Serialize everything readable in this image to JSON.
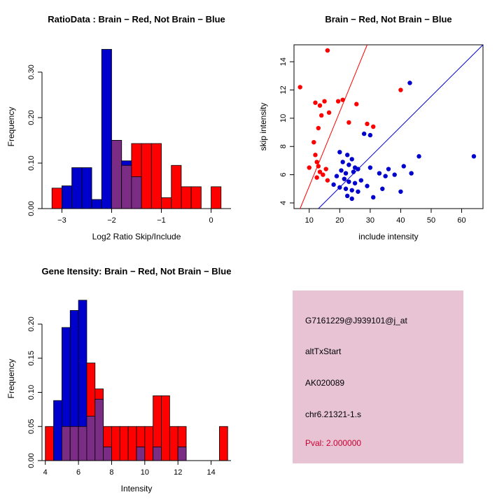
{
  "figure": {
    "background": "#FFFFFF",
    "colors": {
      "red": "#FF0000",
      "blue": "#0000CD",
      "overlap": "#7B2D86"
    }
  },
  "chart_data": [
    {
      "type": "histogram",
      "title": "RatioData : Brain − Red, Not Brain − Blue",
      "xlabel": "Log2 Ratio Skip/Include",
      "ylabel": "Frequency",
      "xlim": [
        -3.4,
        0.4
      ],
      "ylim": [
        0,
        0.36
      ],
      "grid": false,
      "legend": "none",
      "xticks": [
        {
          "v": -3,
          "label": "−3"
        },
        {
          "v": -2,
          "label": "−2"
        },
        {
          "v": -1,
          "label": "−1"
        },
        {
          "v": 0,
          "label": "0"
        }
      ],
      "yticks": [
        {
          "v": 0.0,
          "label": "0.00"
        },
        {
          "v": 0.1,
          "label": "0.10"
        },
        {
          "v": 0.2,
          "label": "0.20"
        },
        {
          "v": 0.3,
          "label": "0.30"
        }
      ],
      "bin_width": 0.2,
      "bins": [
        {
          "x": -3.2,
          "red": 0.045,
          "blue": 0
        },
        {
          "x": -3.0,
          "red": 0,
          "blue": 0.05
        },
        {
          "x": -2.8,
          "red": 0,
          "blue": 0.09
        },
        {
          "x": -2.6,
          "red": 0,
          "blue": 0.09
        },
        {
          "x": -2.4,
          "red": 0,
          "blue": 0.02
        },
        {
          "x": -2.2,
          "red": 0,
          "blue": 0.35
        },
        {
          "x": -2.0,
          "red": 0.15,
          "blue": 0.15
        },
        {
          "x": -1.8,
          "red": 0.095,
          "blue": 0.105
        },
        {
          "x": -1.6,
          "red": 0.143,
          "blue": 0.07
        },
        {
          "x": -1.4,
          "red": 0.143,
          "blue": 0
        },
        {
          "x": -1.2,
          "red": 0.143,
          "blue": 0
        },
        {
          "x": -1.0,
          "red": 0.024,
          "blue": 0
        },
        {
          "x": -0.8,
          "red": 0.095,
          "blue": 0
        },
        {
          "x": -0.6,
          "red": 0.048,
          "blue": 0
        },
        {
          "x": -0.4,
          "red": 0.048,
          "blue": 0
        },
        {
          "x": -0.2,
          "red": 0,
          "blue": 0
        },
        {
          "x": 0.0,
          "red": 0.048,
          "blue": 0
        }
      ]
    },
    {
      "type": "scatter",
      "title": "Brain − Red, Not Brain − Blue",
      "xlabel": "include intensity",
      "ylabel": "skip intensity",
      "xlim": [
        5,
        67
      ],
      "ylim": [
        3.6,
        15.2
      ],
      "grid": false,
      "box": true,
      "legend": "none",
      "xticks": [
        {
          "v": 10,
          "label": "10"
        },
        {
          "v": 20,
          "label": "20"
        },
        {
          "v": 30,
          "label": "30"
        },
        {
          "v": 40,
          "label": "40"
        },
        {
          "v": 50,
          "label": "50"
        },
        {
          "v": 60,
          "label": "60"
        }
      ],
      "yticks": [
        {
          "v": 4,
          "label": "4"
        },
        {
          "v": 6,
          "label": "6"
        },
        {
          "v": 8,
          "label": "8"
        },
        {
          "v": 10,
          "label": "10"
        },
        {
          "v": 12,
          "label": "12"
        },
        {
          "v": 14,
          "label": "14"
        }
      ],
      "series": [
        {
          "name": "Brain",
          "color": "red",
          "points": [
            [
              7,
              12.2
            ],
            [
              16,
              14.8
            ],
            [
              12,
              11.1
            ],
            [
              13.5,
              10.9
            ],
            [
              15,
              11.2
            ],
            [
              16.5,
              10.4
            ],
            [
              14,
              10.2
            ],
            [
              19.5,
              11.2
            ],
            [
              21,
              11.3
            ],
            [
              25.5,
              11.0
            ],
            [
              13,
              9.3
            ],
            [
              29,
              9.6
            ],
            [
              31,
              9.4
            ],
            [
              23,
              9.7
            ],
            [
              11.5,
              8.3
            ],
            [
              12,
              7.4
            ],
            [
              12.5,
              6.9
            ],
            [
              13,
              6.6
            ],
            [
              13.5,
              6.2
            ],
            [
              14.5,
              6.0
            ],
            [
              12.5,
              5.8
            ],
            [
              15.5,
              6.4
            ],
            [
              16,
              5.6
            ],
            [
              40,
              12.0
            ],
            [
              10,
              6.5
            ]
          ]
        },
        {
          "name": "Not Brain",
          "color": "blue",
          "points": [
            [
              43,
              12.5
            ],
            [
              28,
              8.9
            ],
            [
              30,
              8.8
            ],
            [
              20,
              7.6
            ],
            [
              22.5,
              7.4
            ],
            [
              24,
              7.1
            ],
            [
              21,
              6.9
            ],
            [
              23,
              6.7
            ],
            [
              25,
              6.5
            ],
            [
              20.5,
              6.3
            ],
            [
              22,
              6.1
            ],
            [
              24.5,
              6.2
            ],
            [
              26,
              6.4
            ],
            [
              19,
              5.9
            ],
            [
              21.5,
              5.7
            ],
            [
              23,
              5.5
            ],
            [
              25,
              5.4
            ],
            [
              27,
              5.6
            ],
            [
              18,
              5.3
            ],
            [
              20,
              5.1
            ],
            [
              22,
              5.0
            ],
            [
              24,
              4.9
            ],
            [
              26,
              4.8
            ],
            [
              22.5,
              4.5
            ],
            [
              24,
              4.3
            ],
            [
              30,
              6.5
            ],
            [
              33,
              6.1
            ],
            [
              36,
              6.4
            ],
            [
              38,
              6.0
            ],
            [
              41,
              6.6
            ],
            [
              43.5,
              6.1
            ],
            [
              46,
              7.3
            ],
            [
              64,
              7.3
            ],
            [
              40,
              4.8
            ],
            [
              31,
              4.4
            ],
            [
              35,
              5.9
            ],
            [
              29,
              5.2
            ],
            [
              34,
              5.0
            ]
          ]
        }
      ],
      "lines": [
        {
          "color": "red",
          "x1": 7,
          "y1": 3.6,
          "x2": 29,
          "y2": 15.2
        },
        {
          "color": "blue",
          "x1": 13,
          "y1": 3.6,
          "x2": 67,
          "y2": 15.2
        }
      ]
    },
    {
      "type": "histogram",
      "title": "Gene Itensity: Brain − Red, Not Brain − Blue",
      "xlabel": "Intensity",
      "ylabel": "Frequency",
      "xlim": [
        3.8,
        15.2
      ],
      "ylim": [
        0,
        0.24
      ],
      "grid": false,
      "legend": "none",
      "xticks": [
        {
          "v": 4,
          "label": "4"
        },
        {
          "v": 6,
          "label": "6"
        },
        {
          "v": 8,
          "label": "8"
        },
        {
          "v": 10,
          "label": "10"
        },
        {
          "v": 12,
          "label": "12"
        },
        {
          "v": 14,
          "label": "14"
        }
      ],
      "yticks": [
        {
          "v": 0.0,
          "label": "0.00"
        },
        {
          "v": 0.05,
          "label": "0.05"
        },
        {
          "v": 0.1,
          "label": "0.10"
        },
        {
          "v": 0.15,
          "label": "0.15"
        },
        {
          "v": 0.2,
          "label": "0.20"
        }
      ],
      "bin_width": 0.5,
      "bins": [
        {
          "x": 4.0,
          "red": 0.05,
          "blue": 0
        },
        {
          "x": 4.5,
          "red": 0,
          "blue": 0.088
        },
        {
          "x": 5.0,
          "red": 0.05,
          "blue": 0.195
        },
        {
          "x": 5.5,
          "red": 0.05,
          "blue": 0.22
        },
        {
          "x": 6.0,
          "red": 0.05,
          "blue": 0.235
        },
        {
          "x": 6.5,
          "red": 0.143,
          "blue": 0.065
        },
        {
          "x": 7.0,
          "red": 0.105,
          "blue": 0.09
        },
        {
          "x": 7.5,
          "red": 0.05,
          "blue": 0.02
        },
        {
          "x": 8.0,
          "red": 0.05,
          "blue": 0
        },
        {
          "x": 8.5,
          "red": 0.05,
          "blue": 0
        },
        {
          "x": 9.0,
          "red": 0.05,
          "blue": 0
        },
        {
          "x": 9.5,
          "red": 0.05,
          "blue": 0.02
        },
        {
          "x": 10.0,
          "red": 0.05,
          "blue": 0
        },
        {
          "x": 10.5,
          "red": 0.095,
          "blue": 0.02
        },
        {
          "x": 11.0,
          "red": 0.095,
          "blue": 0
        },
        {
          "x": 11.5,
          "red": 0.05,
          "blue": 0
        },
        {
          "x": 12.0,
          "red": 0.05,
          "blue": 0.02
        },
        {
          "x": 12.5,
          "red": 0,
          "blue": 0
        },
        {
          "x": 13.0,
          "red": 0,
          "blue": 0
        },
        {
          "x": 13.5,
          "red": 0,
          "blue": 0
        },
        {
          "x": 14.0,
          "red": 0,
          "blue": 0
        },
        {
          "x": 14.5,
          "red": 0.05,
          "blue": 0
        }
      ]
    }
  ],
  "infobox": {
    "background": "#E7C3D4",
    "lines": [
      {
        "text": "G7161229@J939101@j_at",
        "color": "#000000"
      },
      {
        "text": "altTxStart",
        "color": "#000000"
      },
      {
        "text": "AK020089",
        "color": "#000000"
      },
      {
        "text": "chr6.21321-1.s",
        "color": "#000000"
      },
      {
        "text": "Pval: 2.000000",
        "color": "#CC0033"
      }
    ]
  }
}
